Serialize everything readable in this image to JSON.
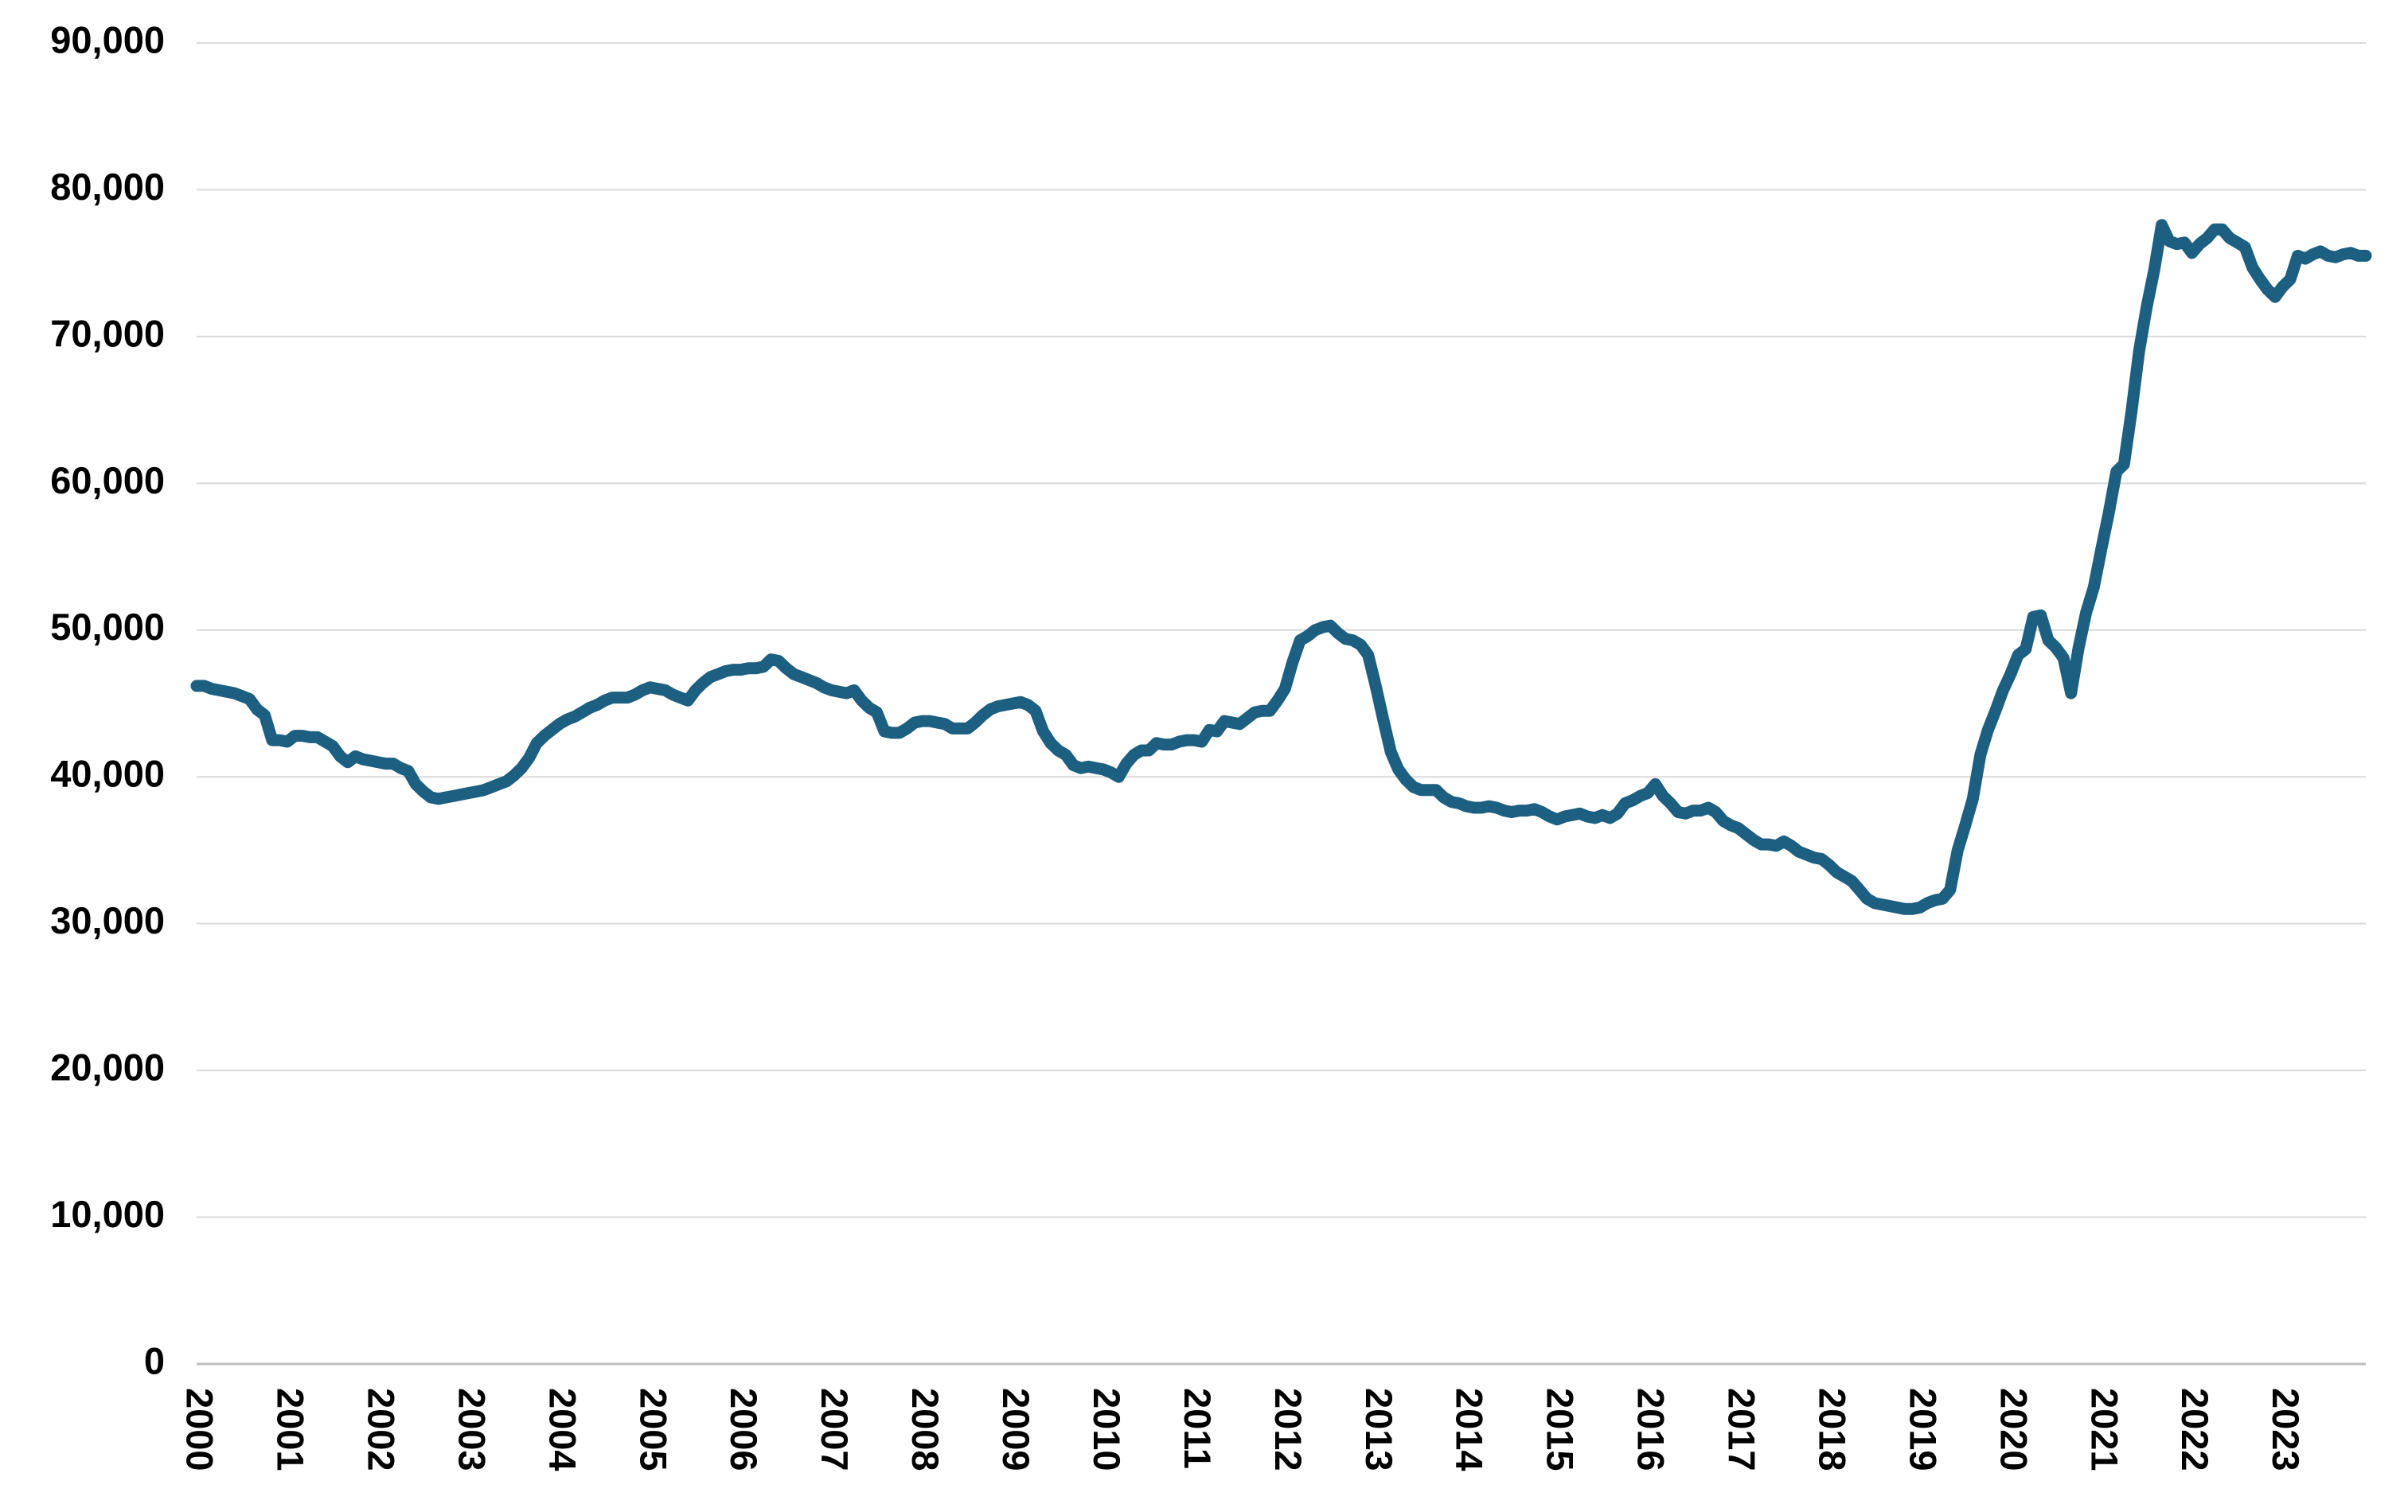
{
  "chart_data": {
    "type": "line",
    "categories": [
      "2000",
      null,
      null,
      null,
      null,
      null,
      null,
      null,
      null,
      null,
      null,
      null,
      "2001",
      null,
      null,
      null,
      null,
      null,
      null,
      null,
      null,
      null,
      null,
      null,
      "2002",
      null,
      null,
      null,
      null,
      null,
      null,
      null,
      null,
      null,
      null,
      null,
      "2003",
      null,
      null,
      null,
      null,
      null,
      null,
      null,
      null,
      null,
      null,
      null,
      "2004",
      null,
      null,
      null,
      null,
      null,
      null,
      null,
      null,
      null,
      null,
      null,
      "2005",
      null,
      null,
      null,
      null,
      null,
      null,
      null,
      null,
      null,
      null,
      null,
      "2006",
      null,
      null,
      null,
      null,
      null,
      null,
      null,
      null,
      null,
      null,
      null,
      "2007",
      null,
      null,
      null,
      null,
      null,
      null,
      null,
      null,
      null,
      null,
      null,
      "2008",
      null,
      null,
      null,
      null,
      null,
      null,
      null,
      null,
      null,
      null,
      null,
      "2009",
      null,
      null,
      null,
      null,
      null,
      null,
      null,
      null,
      null,
      null,
      null,
      "2010",
      null,
      null,
      null,
      null,
      null,
      null,
      null,
      null,
      null,
      null,
      null,
      "2011",
      null,
      null,
      null,
      null,
      null,
      null,
      null,
      null,
      null,
      null,
      null,
      "2012",
      null,
      null,
      null,
      null,
      null,
      null,
      null,
      null,
      null,
      null,
      null,
      "2013",
      null,
      null,
      null,
      null,
      null,
      null,
      null,
      null,
      null,
      null,
      null,
      "2014",
      null,
      null,
      null,
      null,
      null,
      null,
      null,
      null,
      null,
      null,
      null,
      "2015",
      null,
      null,
      null,
      null,
      null,
      null,
      null,
      null,
      null,
      null,
      null,
      "2016",
      null,
      null,
      null,
      null,
      null,
      null,
      null,
      null,
      null,
      null,
      null,
      "2017",
      null,
      null,
      null,
      null,
      null,
      null,
      null,
      null,
      null,
      null,
      null,
      "2018",
      null,
      null,
      null,
      null,
      null,
      null,
      null,
      null,
      null,
      null,
      null,
      "2019",
      null,
      null,
      null,
      null,
      null,
      null,
      null,
      null,
      null,
      null,
      null,
      "2020",
      null,
      null,
      null,
      null,
      null,
      null,
      null,
      null,
      null,
      null,
      null,
      "2021",
      null,
      null,
      null,
      null,
      null,
      null,
      null,
      null,
      null,
      null,
      null,
      "2022",
      null,
      null,
      null,
      null,
      null,
      null,
      null,
      null,
      null,
      null,
      null,
      "2023",
      null,
      null,
      null,
      null,
      null,
      null,
      null,
      null,
      null,
      null,
      null
    ],
    "values": [
      46200,
      46200,
      46000,
      45900,
      45800,
      45700,
      45500,
      45300,
      44600,
      44200,
      42500,
      42500,
      42400,
      42800,
      42800,
      42700,
      42700,
      42400,
      42100,
      41400,
      41000,
      41400,
      41200,
      41100,
      41000,
      40900,
      40900,
      40600,
      40400,
      39500,
      39000,
      38600,
      38500,
      38600,
      38700,
      38800,
      38900,
      39000,
      39100,
      39300,
      39500,
      39700,
      40100,
      40600,
      41300,
      42300,
      42800,
      43200,
      43600,
      43900,
      44100,
      44400,
      44700,
      44900,
      45200,
      45400,
      45400,
      45400,
      45600,
      45900,
      46100,
      46000,
      45900,
      45600,
      45400,
      45200,
      45900,
      46400,
      46800,
      47000,
      47200,
      47300,
      47300,
      47400,
      47400,
      47500,
      48000,
      47900,
      47400,
      47000,
      46800,
      46600,
      46400,
      46100,
      45900,
      45800,
      45700,
      45900,
      45200,
      44700,
      44400,
      43100,
      43000,
      43000,
      43300,
      43700,
      43800,
      43800,
      43700,
      43600,
      43300,
      43300,
      43300,
      43700,
      44200,
      44600,
      44800,
      44900,
      45000,
      45100,
      44900,
      44500,
      43100,
      42300,
      41800,
      41500,
      40800,
      40600,
      40700,
      40600,
      40500,
      40300,
      40000,
      40900,
      41500,
      41800,
      41800,
      42300,
      42200,
      42200,
      42400,
      42500,
      42500,
      42400,
      43200,
      43100,
      43800,
      43700,
      43600,
      44000,
      44400,
      44500,
      44500,
      45200,
      46000,
      47800,
      49300,
      49600,
      50000,
      50200,
      50300,
      49800,
      49400,
      49300,
      49000,
      48300,
      46200,
      43900,
      41700,
      40500,
      39800,
      39300,
      39100,
      39100,
      39100,
      38600,
      38300,
      38200,
      38000,
      37900,
      37900,
      38000,
      37900,
      37700,
      37600,
      37700,
      37700,
      37800,
      37600,
      37300,
      37100,
      37300,
      37400,
      37500,
      37300,
      37200,
      37400,
      37200,
      37500,
      38200,
      38400,
      38700,
      38900,
      39500,
      38700,
      38200,
      37600,
      37500,
      37700,
      37700,
      37900,
      37600,
      37000,
      36700,
      36500,
      36100,
      35700,
      35400,
      35400,
      35300,
      35600,
      35300,
      34900,
      34700,
      34500,
      34400,
      34000,
      33500,
      33200,
      32900,
      32300,
      31700,
      31400,
      31300,
      31200,
      31100,
      31000,
      31000,
      31100,
      31400,
      31600,
      31700,
      32300,
      35000,
      36700,
      38500,
      41500,
      43200,
      44500,
      45900,
      47000,
      48300,
      48700,
      50900,
      51000,
      49300,
      48800,
      48100,
      45700,
      48800,
      51200,
      52900,
      55500,
      58000,
      60800,
      61300,
      64900,
      69000,
      72000,
      74500,
      77600,
      76500,
      76300,
      76400,
      75700,
      76300,
      76700,
      77300,
      77300,
      76700,
      76400,
      76100,
      74700,
      73900,
      73200,
      72700,
      73400,
      73900,
      75500,
      75300,
      75600,
      75800,
      75500,
      75400,
      75600,
      75700,
      75500,
      75500
    ],
    "color": "#1d5f80",
    "ylim": [
      0,
      90000
    ],
    "yticks": [
      0,
      {
        "value": 10000,
        "label": "10,000"
      },
      {
        "value": 20000,
        "label": "20,000"
      },
      {
        "value": 30000,
        "label": "30,000"
      },
      {
        "value": 40000,
        "label": "40,000"
      },
      {
        "value": 50000,
        "label": "50,000"
      },
      {
        "value": 60000,
        "label": "60,000"
      },
      {
        "value": 70000,
        "label": "70,000"
      },
      {
        "value": 80000,
        "label": "80,000"
      },
      {
        "value": 90000,
        "label": "90,000"
      }
    ],
    "grid": true
  }
}
